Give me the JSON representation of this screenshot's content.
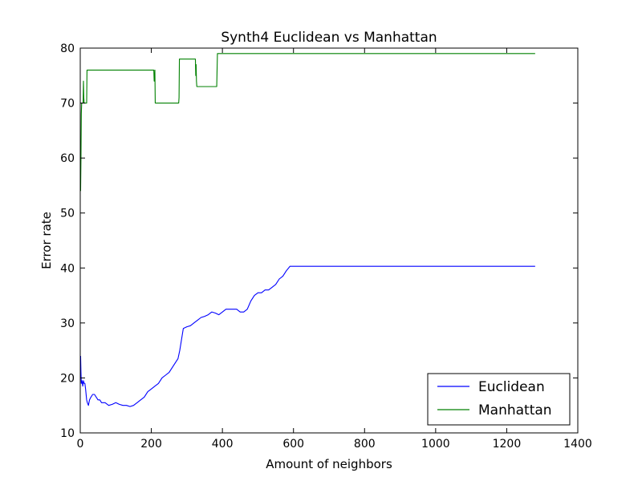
{
  "chart_data": {
    "type": "line",
    "title": "Synth4 Euclidean vs Manhattan",
    "xlabel": "Amount of neighbors",
    "ylabel": "Error rate",
    "xlim": [
      0,
      1400
    ],
    "ylim": [
      10,
      80
    ],
    "xticks": [
      "0",
      "200",
      "400",
      "600",
      "800",
      "1000",
      "1200",
      "1400"
    ],
    "yticks": [
      "10",
      "20",
      "30",
      "40",
      "50",
      "60",
      "70",
      "80"
    ],
    "grid": false,
    "legend_position": "bottom-right",
    "series": [
      {
        "name": "Euclidean",
        "color": "#0000ff",
        "x": [
          1,
          2,
          3,
          5,
          7,
          9,
          11,
          13,
          15,
          18,
          20,
          23,
          26,
          30,
          35,
          40,
          45,
          50,
          55,
          60,
          70,
          80,
          90,
          100,
          110,
          120,
          130,
          140,
          150,
          160,
          170,
          180,
          190,
          200,
          210,
          220,
          230,
          240,
          250,
          260,
          270,
          275,
          280,
          285,
          290,
          300,
          310,
          320,
          330,
          340,
          350,
          360,
          370,
          380,
          390,
          400,
          410,
          420,
          430,
          440,
          450,
          460,
          470,
          480,
          490,
          500,
          510,
          520,
          530,
          540,
          550,
          560,
          570,
          580,
          590,
          600,
          700,
          800,
          900,
          1000,
          1100,
          1200,
          1280
        ],
        "values": [
          24,
          21,
          19,
          19.5,
          18.5,
          19.5,
          19,
          19,
          18,
          16,
          15.5,
          15,
          16,
          16.5,
          17,
          17,
          16.5,
          16,
          16,
          15.5,
          15.5,
          15,
          15.2,
          15.5,
          15.2,
          15,
          15,
          14.8,
          15,
          15.5,
          16,
          16.5,
          17.5,
          18,
          18.5,
          19,
          20,
          20.5,
          21,
          22,
          23,
          23.5,
          25,
          27,
          29,
          29.3,
          29.5,
          30,
          30.5,
          31,
          31.2,
          31.5,
          32,
          31.8,
          31.5,
          32,
          32.5,
          32.5,
          32.5,
          32.5,
          32,
          32,
          32.5,
          34,
          35,
          35.5,
          35.5,
          36,
          36,
          36.5,
          37,
          38,
          38.5,
          39.5,
          40.3,
          40.3,
          40.3,
          40.3,
          40.3,
          40.3,
          40.3,
          40.3,
          40.3
        ]
      },
      {
        "name": "Manhattan",
        "color": "#008000",
        "x": [
          1,
          2,
          3,
          4,
          5,
          8,
          9,
          10,
          11,
          14,
          18,
          19,
          100,
          200,
          207,
          208,
          209,
          210,
          211,
          212,
          240,
          270,
          277,
          278,
          279,
          280,
          300,
          320,
          324,
          325,
          326,
          327,
          328,
          330,
          360,
          384,
          386,
          388,
          500,
          700,
          900,
          1100,
          1280
        ],
        "values": [
          54,
          60,
          68,
          70,
          70,
          70,
          74,
          71,
          70,
          70,
          70,
          76,
          76,
          76,
          76,
          74,
          74,
          76,
          70,
          70,
          70,
          70,
          70,
          71,
          78,
          78,
          78,
          78,
          78,
          75,
          77,
          74,
          73,
          73,
          73,
          73,
          79,
          79,
          79,
          79,
          79,
          79,
          79
        ]
      }
    ]
  }
}
